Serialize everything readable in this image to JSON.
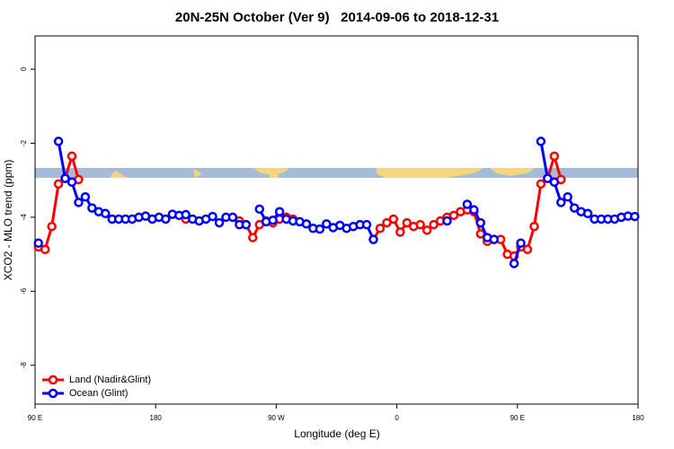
{
  "chart_data": {
    "type": "line",
    "title": "20N-25N October (Ver 9)   2014-09-06 to 2018-12-31",
    "x_label": "Longitude (deg E)",
    "y_label": "XCO2 - MLO trend (ppm)",
    "xlim": [
      90,
      540
    ],
    "xticks": [
      {
        "value": 90,
        "label": "90 E"
      },
      180,
      {
        "value": 270,
        "label": "90 W"
      },
      {
        "value": 360,
        "label": "0"
      },
      {
        "value": 450,
        "label": "90 E"
      },
      {
        "value": 540,
        "label": "180"
      }
    ],
    "ylim": [
      -9.05,
      0.9
    ],
    "yticks": [
      0,
      -2,
      -4,
      -6,
      -8
    ],
    "legend": "bottom-left",
    "x": [
      92.5,
      97.5,
      102.5,
      107.5,
      112.5,
      117.5,
      122.5,
      127.5,
      132.5,
      137.5,
      142.5,
      147.5,
      152.5,
      157.5,
      162.5,
      167.5,
      172.5,
      177.5,
      182.5,
      187.5,
      192.5,
      197.5,
      202.5,
      207.5,
      212.5,
      217.5,
      222.5,
      227.5,
      232.5,
      237.5,
      242.5,
      247.5,
      252.5,
      257.5,
      262.5,
      267.5,
      272.5,
      277.5,
      282.5,
      287.5,
      292.5,
      297.5,
      302.5,
      307.5,
      312.5,
      317.5,
      322.5,
      327.5,
      332.5,
      337.5,
      342.5,
      347.5,
      352.5,
      357.5,
      362.5,
      367.5,
      372.5,
      377.5,
      382.5,
      387.5,
      392.5,
      397.5,
      402.5,
      407.5,
      412.5,
      417.5,
      422.5,
      427.5,
      432.5,
      437.5,
      442.5,
      447.5,
      452.5,
      457.5,
      462.5,
      467.5,
      472.5,
      477.5,
      482.5,
      487.5,
      492.5,
      497.5,
      502.5,
      507.5,
      512.5,
      517.5,
      522.5,
      527.5,
      532.5,
      537.5
    ],
    "series": [
      {
        "name": "Land (Nadir&Glint)",
        "color": "#ff0000",
        "values": [
          -4.8,
          -4.87,
          -4.25,
          -3.1,
          -2.95,
          -2.35,
          -2.98,
          null,
          null,
          null,
          null,
          null,
          null,
          null,
          null,
          null,
          null,
          null,
          null,
          null,
          null,
          null,
          -4.05,
          null,
          null,
          null,
          null,
          null,
          null,
          null,
          -4.1,
          -4.2,
          -4.55,
          -4.2,
          -4.1,
          -4.15,
          -4.05,
          -4.0,
          -4.05,
          null,
          null,
          null,
          null,
          null,
          null,
          null,
          null,
          null,
          null,
          null,
          -4.6,
          -4.3,
          -4.15,
          -4.05,
          -4.4,
          -4.15,
          -4.25,
          -4.2,
          -4.35,
          -4.2,
          -4.1,
          -4.0,
          -3.95,
          -3.85,
          -3.8,
          -3.85,
          -4.45,
          -4.65,
          -4.6,
          -4.6,
          -5.0,
          -5.05,
          -4.8,
          -4.87,
          -4.25,
          -3.1,
          -2.95,
          -2.35,
          -2.98,
          null,
          null,
          null,
          null,
          null,
          null,
          null,
          null,
          null,
          null,
          null
        ]
      },
      {
        "name": "Ocean (Glint)",
        "color": "#0000ff",
        "values": [
          -4.7,
          null,
          null,
          -1.95,
          -2.95,
          -3.05,
          -3.6,
          -3.45,
          -3.75,
          -3.85,
          -3.9,
          -4.05,
          -4.05,
          -4.05,
          -4.05,
          -4.0,
          -3.97,
          -4.05,
          -4.0,
          -4.05,
          -3.92,
          -3.95,
          -3.93,
          -4.05,
          -4.1,
          -4.05,
          -3.98,
          -4.15,
          -4.0,
          -4.0,
          -4.2,
          -4.2,
          null,
          -3.78,
          -4.12,
          -4.08,
          -3.85,
          -4.05,
          -4.1,
          -4.12,
          -4.18,
          -4.3,
          -4.32,
          -4.18,
          -4.28,
          -4.22,
          -4.3,
          -4.25,
          -4.2,
          -4.2,
          -4.6,
          null,
          null,
          null,
          null,
          null,
          null,
          null,
          null,
          null,
          null,
          -4.1,
          null,
          null,
          -3.65,
          -3.8,
          -4.15,
          -4.55,
          -4.6,
          null,
          null,
          -5.25,
          -4.7,
          null,
          null,
          -1.95,
          -2.95,
          -3.05,
          -3.6,
          -3.45,
          -3.75,
          -3.85,
          -3.9,
          -4.05,
          -4.05,
          -4.05,
          -4.05,
          -4.0,
          -3.97,
          -3.98
        ]
      }
    ]
  }
}
